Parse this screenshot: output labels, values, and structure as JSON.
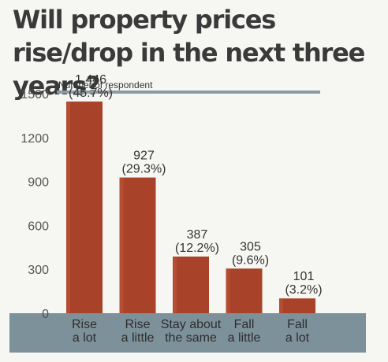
{
  "chart_data": {
    "type": "bar",
    "title": "Will property prices rise/drop in the next three years?",
    "ylabel": "Number of respondent",
    "xlabel": "",
    "ylim": [
      0,
      1500
    ],
    "yticks": [
      0,
      300,
      600,
      900,
      1200,
      1500
    ],
    "categories": [
      [
        "Rise",
        "a lot"
      ],
      [
        "Rise",
        "a little"
      ],
      [
        "Stay about",
        "the same"
      ],
      [
        "Fall",
        "a little"
      ],
      [
        "Fall",
        "a lot"
      ]
    ],
    "values": [
      1446,
      927,
      387,
      305,
      101
    ],
    "value_labels": [
      "1,446",
      "927",
      "387",
      "305",
      "101"
    ],
    "percent_labels": [
      "(45.7%)",
      "(29.3%)",
      "(12.2%)",
      "(9.6%)",
      "(3.2%)"
    ],
    "grid": false,
    "legend": "none",
    "colors": {
      "bar": "#a8432a",
      "bar_highlight": "#c0553a",
      "axis_band": "#7d919b",
      "rule": "#8a9ba5",
      "title": "#3a3a3a"
    }
  }
}
